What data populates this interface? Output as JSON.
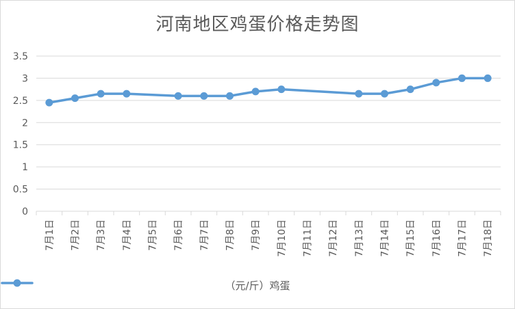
{
  "chart_data": {
    "type": "line",
    "title": "河南地区鸡蛋价格走势图",
    "categories": [
      "7月1日",
      "7月2日",
      "7月3日",
      "7月4日",
      "7月5日",
      "7月6日",
      "7月7日",
      "7月8日",
      "7月9日",
      "7月10日",
      "7月11日",
      "7月12日",
      "7月13日",
      "7月14日",
      "7月15日",
      "7月16日",
      "7月17日",
      "7月18日"
    ],
    "series": [
      {
        "name": "（元/斤）鸡蛋",
        "color": "#5b9bd5",
        "values": [
          2.45,
          2.55,
          2.65,
          2.65,
          null,
          2.6,
          2.6,
          2.6,
          2.7,
          2.75,
          null,
          null,
          2.65,
          2.65,
          2.75,
          2.9,
          3.0,
          3.0
        ]
      }
    ],
    "y_ticks": [
      "0",
      "0.5",
      "1",
      "1.5",
      "2",
      "2.5",
      "3",
      "3.5"
    ],
    "ylim": [
      0,
      3.5
    ],
    "grid": true,
    "legend_position": "bottom",
    "gridline_color": "#d9d9d9"
  }
}
